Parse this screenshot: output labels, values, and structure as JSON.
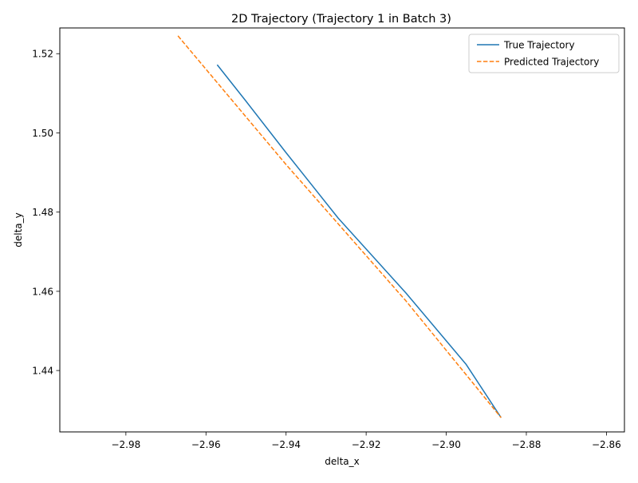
{
  "chart_data": {
    "type": "line",
    "title": "2D Trajectory (Trajectory 1 in Batch 3)",
    "xlabel": "delta_x",
    "ylabel": "delta_y",
    "xlim": [
      -2.9965,
      -2.8555
    ],
    "ylim": [
      1.4245,
      1.5265
    ],
    "x_ticks": [
      -2.98,
      -2.96,
      -2.94,
      -2.92,
      -2.9,
      -2.88,
      -2.86
    ],
    "x_tick_labels": [
      "−2.98",
      "−2.96",
      "−2.94",
      "−2.92",
      "−2.90",
      "−2.88",
      "−2.86"
    ],
    "y_ticks": [
      1.44,
      1.46,
      1.48,
      1.5,
      1.52
    ],
    "y_tick_labels": [
      "1.44",
      "1.46",
      "1.48",
      "1.50",
      "1.52"
    ],
    "grid": false,
    "legend_position": "top-right",
    "series": [
      {
        "name": "True Trajectory",
        "color": "#1f77b4",
        "style": "solid",
        "x": [
          -2.9572,
          -2.95,
          -2.94,
          -2.927,
          -2.91,
          -2.895,
          -2.8863
        ],
        "y": [
          1.5172,
          1.508,
          1.495,
          1.4785,
          1.4595,
          1.4415,
          1.4281
        ]
      },
      {
        "name": "Predicted Trajectory",
        "color": "#ff7f0e",
        "style": "dashed",
        "x": [
          -2.967,
          -2.94,
          -2.91,
          -2.8863
        ],
        "y": [
          1.5245,
          1.492,
          1.4575,
          1.4281
        ]
      }
    ]
  }
}
